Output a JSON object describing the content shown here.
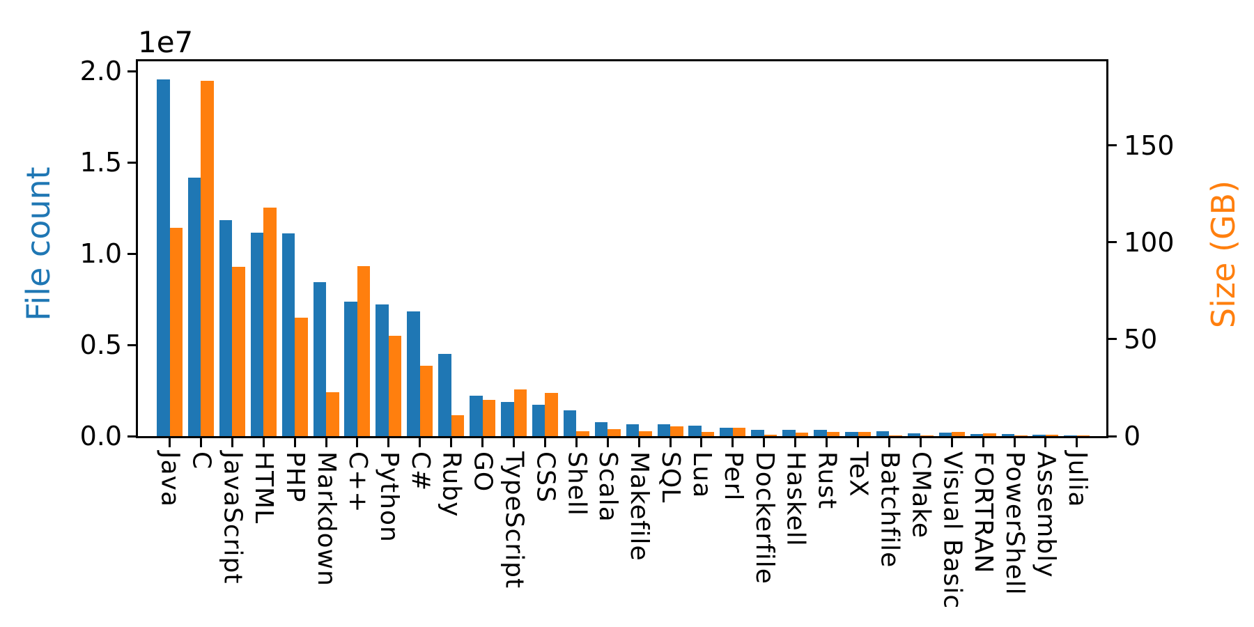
{
  "chart_data": {
    "type": "bar",
    "title": "",
    "grid": false,
    "legend": "none",
    "background": "#ffffff",
    "spine_color": "#000000",
    "categories": [
      "Java",
      "C",
      "JavaScript",
      "HTML",
      "PHP",
      "Markdown",
      "C++",
      "Python",
      "C#",
      "Ruby",
      "GO",
      "TypeScript",
      "CSS",
      "Shell",
      "Scala",
      "Makefile",
      "SQL",
      "Lua",
      "Perl",
      "Dockerfile",
      "Haskell",
      "Rust",
      "TeX",
      "Batchfile",
      "CMake",
      "Visual Basic",
      "FORTRAN",
      "PowerShell",
      "Assembly",
      "Julia"
    ],
    "series": [
      {
        "name": "File count",
        "axis": "left",
        "color": "#1f77b4",
        "values": [
          19560000,
          14160000,
          11830000,
          11170000,
          11120000,
          8450000,
          7370000,
          7230000,
          6820000,
          4490000,
          2230000,
          1880000,
          1720000,
          1400000,
          780000,
          660000,
          660000,
          570000,
          470000,
          360000,
          340000,
          360000,
          220000,
          250000,
          170000,
          180000,
          130000,
          120000,
          90000,
          40000
        ]
      },
      {
        "name": "Size (GB)",
        "axis": "right",
        "color": "#ff7f0e",
        "values": [
          107.5,
          183.5,
          87.5,
          118.0,
          61.0,
          22.7,
          87.8,
          51.7,
          36.5,
          10.7,
          18.8,
          24.1,
          22.3,
          2.7,
          3.5,
          2.7,
          5.1,
          2.3,
          4.5,
          0.8,
          1.7,
          2.3,
          2.1,
          0.2,
          0.3,
          2.1,
          1.4,
          0.4,
          0.7,
          0.2
        ]
      }
    ],
    "left_axis": {
      "label": "File count",
      "color": "#1f77b4",
      "offset_text": "1e7",
      "tick_labels": [
        "0.0",
        "0.5",
        "1.0",
        "1.5",
        "2.0"
      ],
      "tick_values": [
        0,
        5000000,
        10000000,
        15000000,
        20000000
      ],
      "ylim": [
        0,
        20550000
      ]
    },
    "right_axis": {
      "label": "Size (GB)",
      "color": "#ff7f0e",
      "tick_labels": [
        "0",
        "50",
        "100",
        "150"
      ],
      "tick_values": [
        0,
        50,
        100,
        150
      ],
      "ylim": [
        0,
        193.5
      ]
    },
    "xlabel": "",
    "ylabel_left": "File count",
    "ylabel_right": "Size (GB)"
  }
}
